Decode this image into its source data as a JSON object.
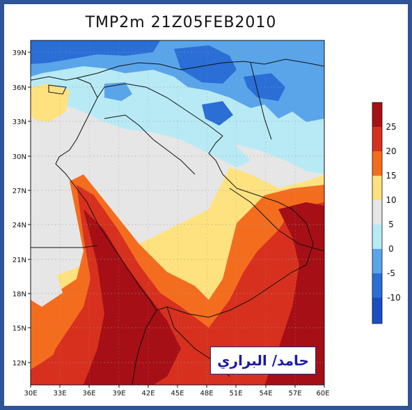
{
  "title": "TMP2m  21Z05FEB2010",
  "credit": "حامد/ البراري",
  "map": {
    "lat_labels": [
      "39N",
      "36N",
      "33N",
      "30N",
      "27N",
      "24N",
      "21N",
      "18N",
      "15N",
      "12N"
    ],
    "lon_labels": [
      "30E",
      "33E",
      "36E",
      "39E",
      "42E",
      "45E",
      "48E",
      "51E",
      "54E",
      "57E",
      "60E"
    ]
  },
  "colorbar": {
    "labels": [
      "25",
      "20",
      "15",
      "10",
      "5",
      "0",
      "-5",
      "-10"
    ],
    "colors": [
      "#a50f15",
      "#d7301f",
      "#f46d1e",
      "#fee27f",
      "#e6e6e6",
      "#b8eaf5",
      "#5aa5ea",
      "#2a6ed6",
      "#1a4fc4"
    ]
  }
}
